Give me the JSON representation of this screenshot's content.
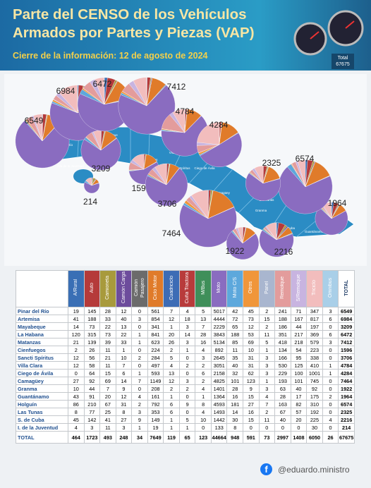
{
  "header": {
    "title": "Parte del CENSO de los Vehículos Armados por Partes y Piezas (VAP)",
    "subtitle": "Cierre de la información: 12 de agosto de 2024",
    "total_label": "Total"
  },
  "map": {
    "labels": [
      "Pinar del Río",
      "Artemisa",
      "Mayabeque",
      "Isla de la Juventud",
      "Cienfuegos",
      "Villa Clara",
      "Sancti Spíritus",
      "Ciego de Ávila",
      "Camagüey",
      "Las Tunas",
      "Holguín",
      "Granma",
      "Santiago de Cuba",
      "Guantánamo"
    ]
  },
  "table": {
    "columns": [
      {
        "label": "A/Rural",
        "color": "#3a6fb5"
      },
      {
        "label": "Auto",
        "color": "#b53a3a"
      },
      {
        "label": "Camioneta",
        "color": "#a89a3c"
      },
      {
        "label": "Camión Carga",
        "color": "#6d4c9c"
      },
      {
        "label": "Camión Pasajero",
        "color": "#6b6b6b"
      },
      {
        "label": "Ciclo Motor",
        "color": "#e07b2a"
      },
      {
        "label": "Cuadriciclo",
        "color": "#3d6cb5"
      },
      {
        "label": "Cuña Tractora",
        "color": "#b83b3b"
      },
      {
        "label": "M/Bus",
        "color": "#3f8f5a"
      },
      {
        "label": "Moto",
        "color": "#8a6cc0"
      },
      {
        "label": "Moto C/S",
        "color": "#5da8dc"
      },
      {
        "label": "Otros",
        "color": "#f0963a"
      },
      {
        "label": "Panel",
        "color": "#a9b6cf"
      },
      {
        "label": "Remolque",
        "color": "#e39c9c"
      },
      {
        "label": "S/Remolque",
        "color": "#c8b4e0"
      },
      {
        "label": "Triciclo",
        "color": "#f2bdbd"
      },
      {
        "label": "Omnibus",
        "color": "#a9cfe8"
      },
      {
        "label": "TOTAL"
      }
    ],
    "rows": [
      {
        "name": "Pinar del Río",
        "cells": [
          19,
          145,
          28,
          12,
          0,
          561,
          7,
          4,
          5,
          5017,
          42,
          45,
          2,
          241,
          71,
          347,
          3,
          6549
        ]
      },
      {
        "name": "Artemisa",
        "cells": [
          41,
          188,
          33,
          40,
          3,
          854,
          12,
          18,
          13,
          4444,
          72,
          73,
          15,
          188,
          167,
          817,
          6,
          6984
        ]
      },
      {
        "name": "Mayabeque",
        "cells": [
          14,
          73,
          22,
          13,
          0,
          341,
          1,
          3,
          7,
          2229,
          65,
          12,
          2,
          186,
          44,
          197,
          0,
          3209
        ]
      },
      {
        "name": "La Habana",
        "cells": [
          120,
          315,
          73,
          22,
          1,
          841,
          20,
          14,
          28,
          3843,
          188,
          53,
          11,
          351,
          217,
          369,
          6,
          6472
        ]
      },
      {
        "name": "Matanzas",
        "cells": [
          21,
          139,
          39,
          33,
          1,
          623,
          26,
          3,
          16,
          5134,
          85,
          69,
          5,
          418,
          218,
          579,
          3,
          7412
        ]
      },
      {
        "name": "Cienfuegos",
        "cells": [
          2,
          26,
          11,
          1,
          0,
          224,
          2,
          1,
          4,
          892,
          11,
          10,
          1,
          134,
          54,
          223,
          0,
          1596
        ]
      },
      {
        "name": "Sancti Spíritus",
        "cells": [
          12,
          56,
          21,
          10,
          2,
          284,
          5,
          0,
          3,
          2645,
          35,
          31,
          3,
          166,
          95,
          338,
          0,
          3706
        ]
      },
      {
        "name": "Villa Clara",
        "cells": [
          12,
          58,
          11,
          7,
          0,
          497,
          4,
          2,
          2,
          3051,
          40,
          31,
          3,
          530,
          125,
          410,
          1,
          4784
        ]
      },
      {
        "name": "Ciego de Ávila",
        "cells": [
          0,
          64,
          15,
          6,
          1,
          593,
          13,
          0,
          6,
          2158,
          32,
          62,
          3,
          229,
          100,
          1001,
          1,
          4284
        ]
      },
      {
        "name": "Camagüey",
        "cells": [
          27,
          92,
          69,
          14,
          7,
          1149,
          12,
          3,
          2,
          4825,
          101,
          123,
          1,
          193,
          101,
          745,
          0,
          7464
        ]
      },
      {
        "name": "Granma",
        "cells": [
          10,
          44,
          7,
          9,
          0,
          208,
          2,
          2,
          4,
          1401,
          28,
          9,
          3,
          63,
          40,
          92,
          0,
          1922
        ]
      },
      {
        "name": "Guantánamo",
        "cells": [
          43,
          91,
          20,
          12,
          4,
          161,
          1,
          0,
          1,
          1364,
          16,
          15,
          4,
          28,
          17,
          175,
          2,
          1964
        ]
      },
      {
        "name": "Holguín",
        "cells": [
          86,
          210,
          67,
          31,
          2,
          792,
          6,
          9,
          8,
          4593,
          181,
          27,
          7,
          163,
          82,
          310,
          0,
          6574
        ]
      },
      {
        "name": "Las Tunas",
        "cells": [
          8,
          77,
          25,
          8,
          3,
          353,
          6,
          0,
          4,
          1493,
          14,
          16,
          2,
          67,
          57,
          192,
          0,
          2325
        ]
      },
      {
        "name": "S. de Cuba",
        "cells": [
          45,
          142,
          41,
          27,
          9,
          149,
          1,
          5,
          10,
          1442,
          30,
          15,
          11,
          40,
          20,
          225,
          4,
          2216
        ]
      },
      {
        "name": "I. de la Juventud",
        "cells": [
          4,
          3,
          11,
          3,
          1,
          19,
          1,
          1,
          0,
          133,
          8,
          0,
          0,
          0,
          0,
          30,
          0,
          214
        ]
      },
      {
        "name": "TOTAL",
        "cells": [
          464,
          1723,
          493,
          248,
          34,
          7649,
          119,
          65,
          123,
          44664,
          948,
          591,
          73,
          2997,
          1408,
          6050,
          26,
          67675
        ]
      }
    ]
  },
  "footer": {
    "handle": "@eduardo.ministro"
  }
}
